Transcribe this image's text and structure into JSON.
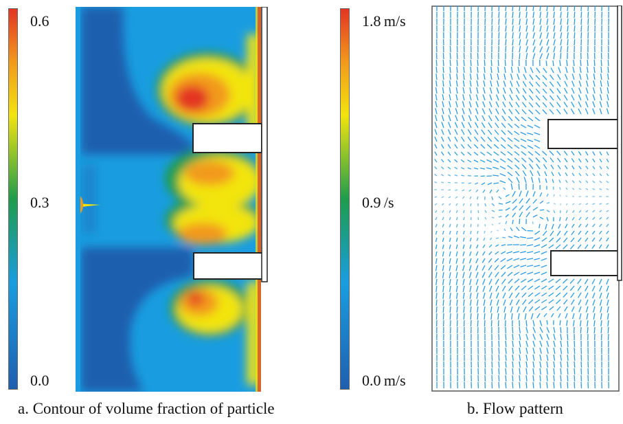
{
  "panel_a": {
    "colorbar": {
      "max": "0.6",
      "mid": "0.3",
      "min": "0.0"
    },
    "caption": "a.  Contour of volume fraction of particle"
  },
  "panel_b": {
    "colorbar": {
      "max": "1.8 m/s",
      "mid": "0.9 /s",
      "min": "0.0 m/s"
    },
    "caption": "b.  Flow pattern"
  },
  "colors": {
    "scale": [
      "#1f5fae",
      "#1a9de0",
      "#1f9c4c",
      "#f2e40f",
      "#f29a1c",
      "#e33524"
    ],
    "vector": "#2a9be3"
  }
}
